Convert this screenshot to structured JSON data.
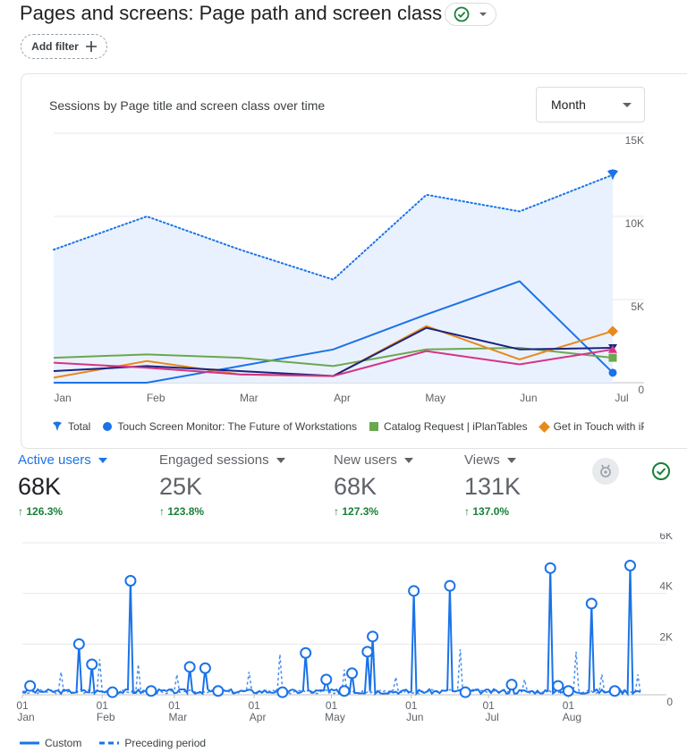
{
  "header": {
    "title": "Pages and screens: Page path and screen class",
    "add_filter_label": "Add filter"
  },
  "card1": {
    "title": "Sessions by Page title and screen class over time",
    "period_select": "Month"
  },
  "colors": {
    "total": "#1a73e8",
    "touch": "#1a73e8",
    "catalog": "#6aa84f",
    "get_in_touch": "#e8891b",
    "navy": "#1a237e",
    "magenta": "#d63384",
    "brand_blue": "#1a73e8",
    "positive": "#188038"
  },
  "chart_data": [
    {
      "type": "line",
      "title": "Sessions by Page title and screen class over time",
      "categories": [
        "Jan",
        "Feb",
        "Mar",
        "Apr",
        "May",
        "Jun",
        "Jul"
      ],
      "y_ticks": [
        "0",
        "5K",
        "10K",
        "15K"
      ],
      "ylim": [
        0,
        15000
      ],
      "series": [
        {
          "name": "Total",
          "key": "total",
          "values": [
            8000,
            10000,
            8000,
            6200,
            11300,
            10300,
            12500
          ]
        },
        {
          "name": "Touch Screen Monitor: The Future of Workstations",
          "key": "touch",
          "values": [
            0,
            0,
            1000,
            2000,
            4100,
            6100,
            600
          ]
        },
        {
          "name": "Catalog Request | iPlanTables",
          "key": "catalog",
          "values": [
            1500,
            1700,
            1500,
            1000,
            2000,
            2100,
            1500
          ]
        },
        {
          "name": "Get in Touch with iP",
          "key": "get_in_touch",
          "values": [
            300,
            1300,
            500,
            400,
            3400,
            1400,
            3100
          ]
        },
        {
          "name": "",
          "key": "navy",
          "values": [
            700,
            1000,
            700,
            400,
            3300,
            2000,
            2100
          ]
        },
        {
          "name": "",
          "key": "magenta",
          "values": [
            1200,
            900,
            500,
            400,
            1900,
            1100,
            2000
          ]
        }
      ]
    },
    {
      "type": "line",
      "title": "Active users",
      "ylim": [
        0,
        6000
      ],
      "y_ticks": [
        "0",
        "2K",
        "4K",
        "6K"
      ],
      "x_ticks": [
        {
          "day": "01",
          "month": "Jan",
          "index": 0
        },
        {
          "day": "01",
          "month": "Feb",
          "index": 31
        },
        {
          "day": "01",
          "month": "Mar",
          "index": 59
        },
        {
          "day": "01",
          "month": "Apr",
          "index": 90
        },
        {
          "day": "01",
          "month": "May",
          "index": 120
        },
        {
          "day": "01",
          "month": "Jun",
          "index": 151
        },
        {
          "day": "01",
          "month": "Jul",
          "index": 181
        },
        {
          "day": "01",
          "month": "Aug",
          "index": 212
        }
      ],
      "days": 232,
      "series": [
        {
          "name": "Custom",
          "style": "solid",
          "spikes": [
            [
              3,
              350
            ],
            [
              22,
              2000
            ],
            [
              27,
              1200
            ],
            [
              35,
              100
            ],
            [
              42,
              4500
            ],
            [
              50,
              150
            ],
            [
              65,
              1100
            ],
            [
              71,
              1050
            ],
            [
              76,
              150
            ],
            [
              101,
              100
            ],
            [
              110,
              1650
            ],
            [
              118,
              600
            ],
            [
              125,
              150
            ],
            [
              128,
              850
            ],
            [
              134,
              1700
            ],
            [
              136,
              2300
            ],
            [
              152,
              4100
            ],
            [
              166,
              4300
            ],
            [
              172,
              100
            ],
            [
              190,
              400
            ],
            [
              205,
              5000
            ],
            [
              208,
              350
            ],
            [
              212,
              150
            ],
            [
              221,
              3600
            ],
            [
              230,
              150
            ],
            [
              236,
              5100
            ]
          ]
        },
        {
          "name": "Preceding period",
          "style": "dashed",
          "spikes": [
            [
              15,
              900
            ],
            [
              30,
              1400
            ],
            [
              45,
              1200
            ],
            [
              60,
              800
            ],
            [
              88,
              900
            ],
            [
              100,
              1600
            ],
            [
              125,
              1000
            ],
            [
              145,
              700
            ],
            [
              170,
              1800
            ],
            [
              195,
              600
            ],
            [
              215,
              1700
            ],
            [
              225,
              800
            ],
            [
              239,
              800
            ]
          ]
        }
      ]
    }
  ],
  "metrics": [
    {
      "label": "Active users",
      "value": "68K",
      "change": "126.3%",
      "active": true
    },
    {
      "label": "Engaged sessions",
      "value": "25K",
      "change": "123.8%",
      "active": false
    },
    {
      "label": "New users",
      "value": "68K",
      "change": "127.3%",
      "active": false
    },
    {
      "label": "Views",
      "value": "131K",
      "change": "137.0%",
      "active": false
    }
  ],
  "legend2": {
    "custom": "Custom",
    "preceding": "Preceding period"
  }
}
